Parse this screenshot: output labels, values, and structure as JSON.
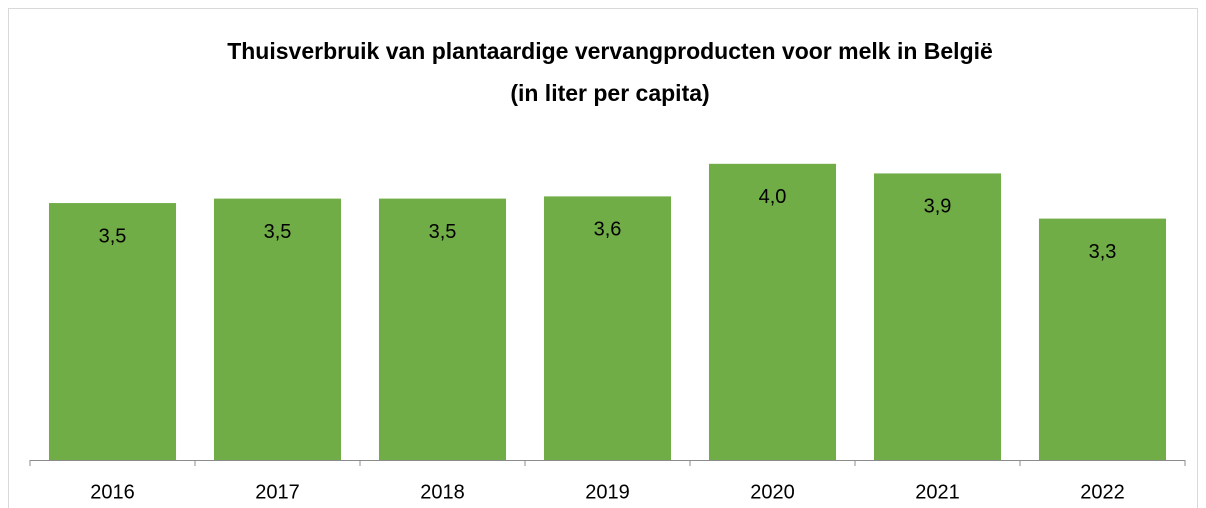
{
  "chart_data": {
    "type": "bar",
    "title": "Thuisverbruik van plantaardige vervangproducten voor melk in België",
    "subtitle": "(in liter per capita)",
    "categories": [
      "2016",
      "2017",
      "2018",
      "2019",
      "2020",
      "2021",
      "2022"
    ],
    "values": [
      3.47,
      3.53,
      3.53,
      3.56,
      4.0,
      3.87,
      3.26
    ],
    "value_labels": [
      "3,5",
      "3,5",
      "3,5",
      "3,6",
      "4,0",
      "3,9",
      "3,3"
    ],
    "color": "#70ad47",
    "ylim": [
      0,
      4.2
    ]
  }
}
